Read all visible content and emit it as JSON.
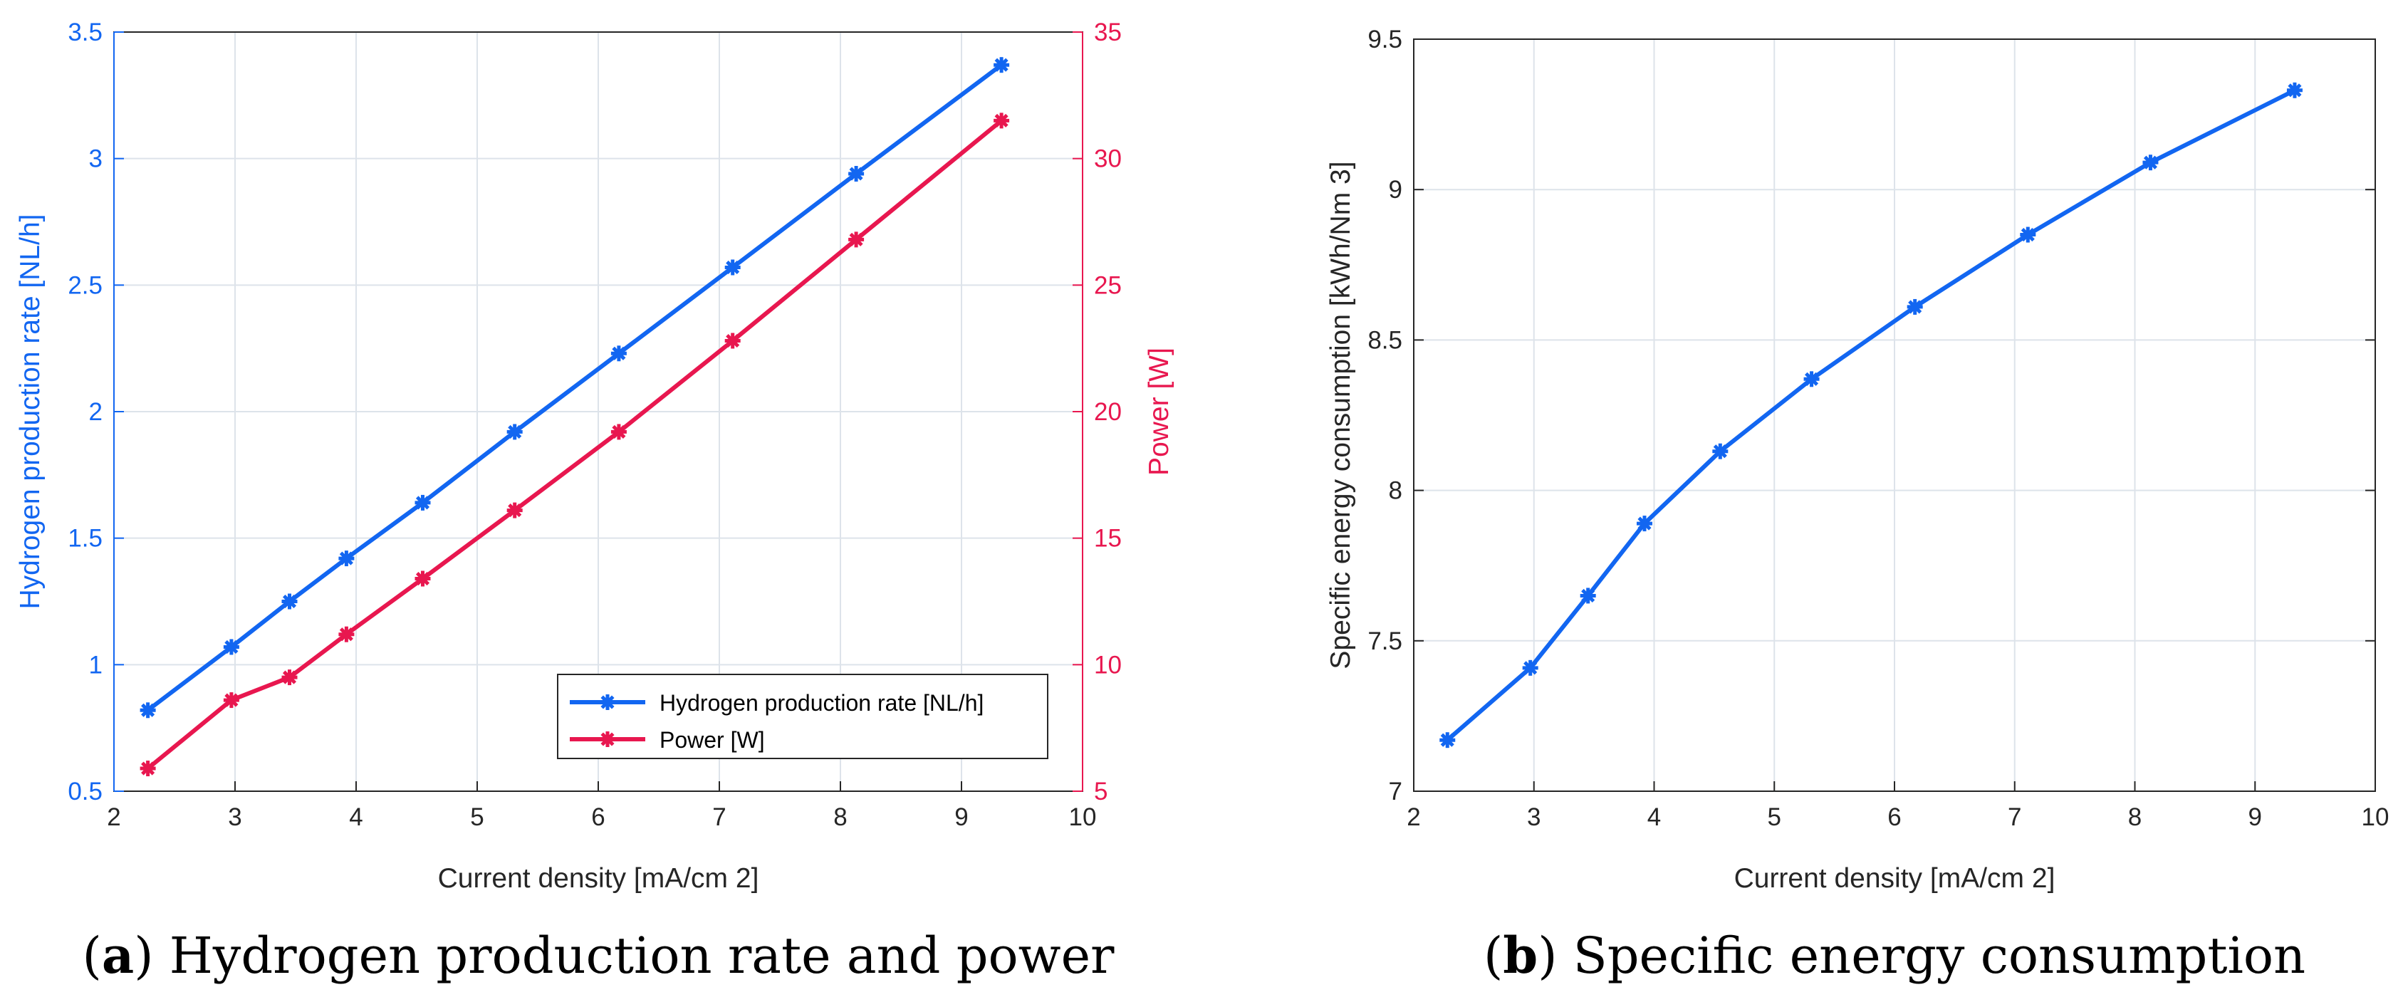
{
  "chart_data": [
    {
      "type": "line",
      "caption_letter": "a",
      "caption_text": "Hydrogen production rate and power",
      "xlabel": "Current density [mA/cm 2]",
      "xlim": [
        2,
        10
      ],
      "xticks": [
        2,
        3,
        4,
        5,
        6,
        7,
        8,
        9,
        10
      ],
      "grid": true,
      "legend_position": "bottom-right",
      "series": [
        {
          "name": "Hydrogen production rate [NL/h]",
          "axis": "left",
          "color": "#1266f1",
          "x": [
            2.28,
            2.97,
            3.45,
            3.92,
            4.55,
            5.31,
            6.17,
            7.11,
            8.13,
            9.33
          ],
          "values": [
            0.82,
            1.07,
            1.25,
            1.42,
            1.64,
            1.92,
            2.23,
            2.57,
            2.94,
            3.37
          ]
        },
        {
          "name": "Power [W]",
          "axis": "right",
          "color": "#e8174f",
          "x": [
            2.28,
            2.97,
            3.45,
            3.92,
            4.55,
            5.31,
            6.17,
            7.11,
            8.13,
            9.33
          ],
          "values": [
            5.9,
            8.6,
            9.5,
            11.2,
            13.4,
            16.1,
            19.2,
            22.8,
            26.8,
            31.5
          ]
        }
      ],
      "y_left": {
        "label": "Hydrogen production rate [NL/h]",
        "lim": [
          0.5,
          3.5
        ],
        "ticks": [
          "0.5",
          "1",
          "1.5",
          "2",
          "2.5",
          "3",
          "3.5"
        ]
      },
      "y_right": {
        "label": "Power [W]",
        "lim": [
          5,
          35
        ],
        "ticks": [
          "5",
          "10",
          "15",
          "20",
          "25",
          "30",
          "35"
        ]
      }
    },
    {
      "type": "line",
      "caption_letter": "b",
      "caption_text": "Specific energy consumption",
      "xlabel": "Current density [mA/cm 2]",
      "ylabel": "Specific energy consumption [kWh/Nm 3]",
      "xlim": [
        2,
        10
      ],
      "xticks": [
        2,
        3,
        4,
        5,
        6,
        7,
        8,
        9,
        10
      ],
      "ylim": [
        7,
        9.5
      ],
      "yticks": [
        "7",
        "7.5",
        "8",
        "8.5",
        "9",
        "9.5"
      ],
      "grid": true,
      "series": [
        {
          "name": "Specific energy consumption",
          "color": "#1266f1",
          "x": [
            2.28,
            2.97,
            3.45,
            3.92,
            4.55,
            5.31,
            6.17,
            7.11,
            8.13,
            9.33
          ],
          "values": [
            7.17,
            7.41,
            7.65,
            7.89,
            8.13,
            8.37,
            8.61,
            8.85,
            9.09,
            9.33
          ]
        }
      ]
    }
  ]
}
